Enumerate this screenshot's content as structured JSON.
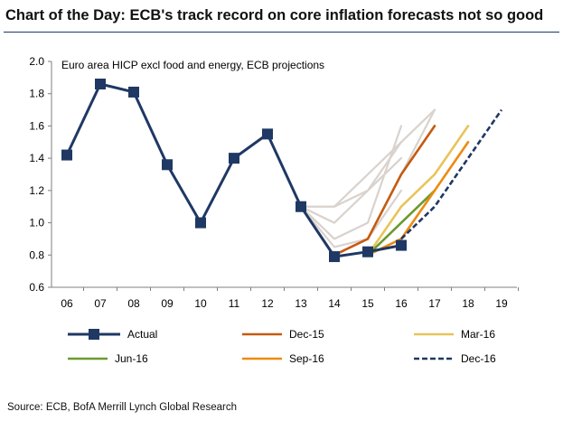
{
  "title": "Chart of the Day: ECB's track record on core inflation forecasts not so good",
  "source": "Source: ECB, BofA Merrill Lynch Global Research",
  "colors": {
    "actual": "#1f3864",
    "dec15": "#c55a11",
    "mar16": "#e8c45a",
    "jun16": "#6b9a2f",
    "sep16": "#ed8b12",
    "dec16": "#1f3864",
    "older": "#d9d2cd"
  },
  "chart_data": {
    "type": "line",
    "note": "Euro area HICP excl food and energy, ECB projections",
    "x_ticks": [
      "06",
      "07",
      "08",
      "09",
      "10",
      "11",
      "12",
      "13",
      "14",
      "15",
      "16",
      "17",
      "18",
      "19"
    ],
    "x_values": [
      2006,
      2007,
      2008,
      2009,
      2010,
      2011,
      2012,
      2013,
      2014,
      2015,
      2016,
      2017,
      2018,
      2019
    ],
    "y_ticks": [
      "0.6",
      "0.8",
      "1.0",
      "1.2",
      "1.4",
      "1.6",
      "1.8",
      "2.0"
    ],
    "ylim": [
      0.6,
      2.0
    ],
    "xlim": [
      2006,
      2019
    ],
    "series": [
      {
        "name": "Actual",
        "color": "actual",
        "style": "solid-marker",
        "x": [
          2006,
          2007,
          2008,
          2009,
          2010,
          2011,
          2012,
          2013,
          2014,
          2015,
          2016
        ],
        "y": [
          1.42,
          1.86,
          1.81,
          1.36,
          1.0,
          1.4,
          1.55,
          1.1,
          0.79,
          0.82,
          0.86
        ]
      },
      {
        "name": "",
        "color": "older",
        "style": "solid",
        "x": [
          2013,
          2014,
          2015,
          2016
        ],
        "y": [
          1.1,
          1.1,
          1.2,
          1.4
        ]
      },
      {
        "name": "",
        "color": "older",
        "style": "solid",
        "x": [
          2013,
          2014,
          2015,
          2016,
          2017
        ],
        "y": [
          1.1,
          1.1,
          1.3,
          1.5,
          1.7
        ]
      },
      {
        "name": "",
        "color": "older",
        "style": "solid",
        "x": [
          2013,
          2014,
          2015,
          2016
        ],
        "y": [
          1.1,
          0.9,
          1.0,
          1.6
        ]
      },
      {
        "name": "",
        "color": "older",
        "style": "solid",
        "x": [
          2013,
          2014,
          2015,
          2016
        ],
        "y": [
          1.1,
          0.85,
          0.9,
          1.2
        ]
      },
      {
        "name": "",
        "color": "older",
        "style": "solid",
        "x": [
          2013,
          2014,
          2015,
          2016,
          2017
        ],
        "y": [
          1.1,
          0.8,
          0.9,
          1.3,
          1.7
        ]
      },
      {
        "name": "",
        "color": "older",
        "style": "solid",
        "x": [
          2013,
          2014,
          2015,
          2016
        ],
        "y": [
          1.1,
          1.0,
          1.2,
          1.5
        ]
      },
      {
        "name": "Dec-15",
        "color": "dec15",
        "style": "solid",
        "x": [
          2014,
          2015,
          2016,
          2017
        ],
        "y": [
          0.8,
          0.9,
          1.3,
          1.6
        ]
      },
      {
        "name": "Mar-16",
        "color": "mar16",
        "style": "solid",
        "x": [
          2015,
          2016,
          2017,
          2018
        ],
        "y": [
          0.8,
          1.1,
          1.3,
          1.6
        ]
      },
      {
        "name": "Jun-16",
        "color": "jun16",
        "style": "solid",
        "x": [
          2015,
          2016,
          2017
        ],
        "y": [
          0.8,
          1.0,
          1.2
        ]
      },
      {
        "name": "Sep-16",
        "color": "sep16",
        "style": "solid",
        "x": [
          2015,
          2016,
          2017,
          2018
        ],
        "y": [
          0.8,
          0.9,
          1.2,
          1.5
        ]
      },
      {
        "name": "Dec-16",
        "color": "dec16",
        "style": "dashed",
        "x": [
          2016,
          2017,
          2018,
          2019
        ],
        "y": [
          0.9,
          1.1,
          1.4,
          1.7
        ]
      }
    ],
    "legend": [
      {
        "label": "Actual",
        "color": "actual",
        "style": "solid-marker"
      },
      {
        "label": "Dec-15",
        "color": "dec15",
        "style": "solid"
      },
      {
        "label": "Mar-16",
        "color": "mar16",
        "style": "solid"
      },
      {
        "label": "Jun-16",
        "color": "jun16",
        "style": "solid"
      },
      {
        "label": "Sep-16",
        "color": "sep16",
        "style": "solid"
      },
      {
        "label": "Dec-16",
        "color": "dec16",
        "style": "dashed"
      }
    ],
    "legend_position": "bottom",
    "grid": false
  }
}
